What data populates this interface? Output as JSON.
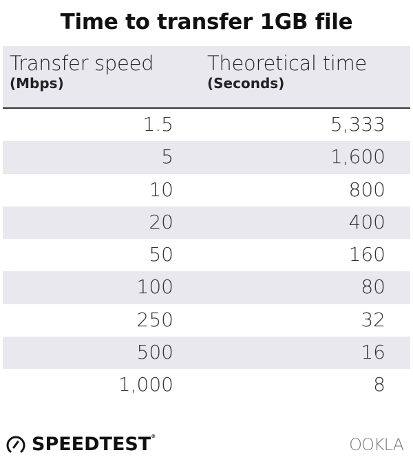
{
  "title": "Time to transfer 1GB file",
  "chart_data": {
    "type": "table",
    "title": "Time to transfer 1GB file",
    "columns": [
      {
        "label": "Transfer speed",
        "unit": "(Mbps)"
      },
      {
        "label": "Theoretical time",
        "unit": "(Seconds)"
      }
    ],
    "rows": [
      [
        "1.5",
        "5,333"
      ],
      [
        "5",
        "1,600"
      ],
      [
        "10",
        "800"
      ],
      [
        "20",
        "400"
      ],
      [
        "50",
        "160"
      ],
      [
        "100",
        "80"
      ],
      [
        "250",
        "32"
      ],
      [
        "500",
        "16"
      ],
      [
        "1,000",
        "8"
      ]
    ]
  },
  "colors": {
    "header_bg": "#e9e8ee",
    "stripe": "#e9e8ee",
    "divider": "#333333"
  },
  "footer": {
    "left_logo": "SPEEDTEST",
    "left_logo_mark": "®",
    "right_logo": "OOKLA",
    "left_icon": "speedometer-icon"
  }
}
